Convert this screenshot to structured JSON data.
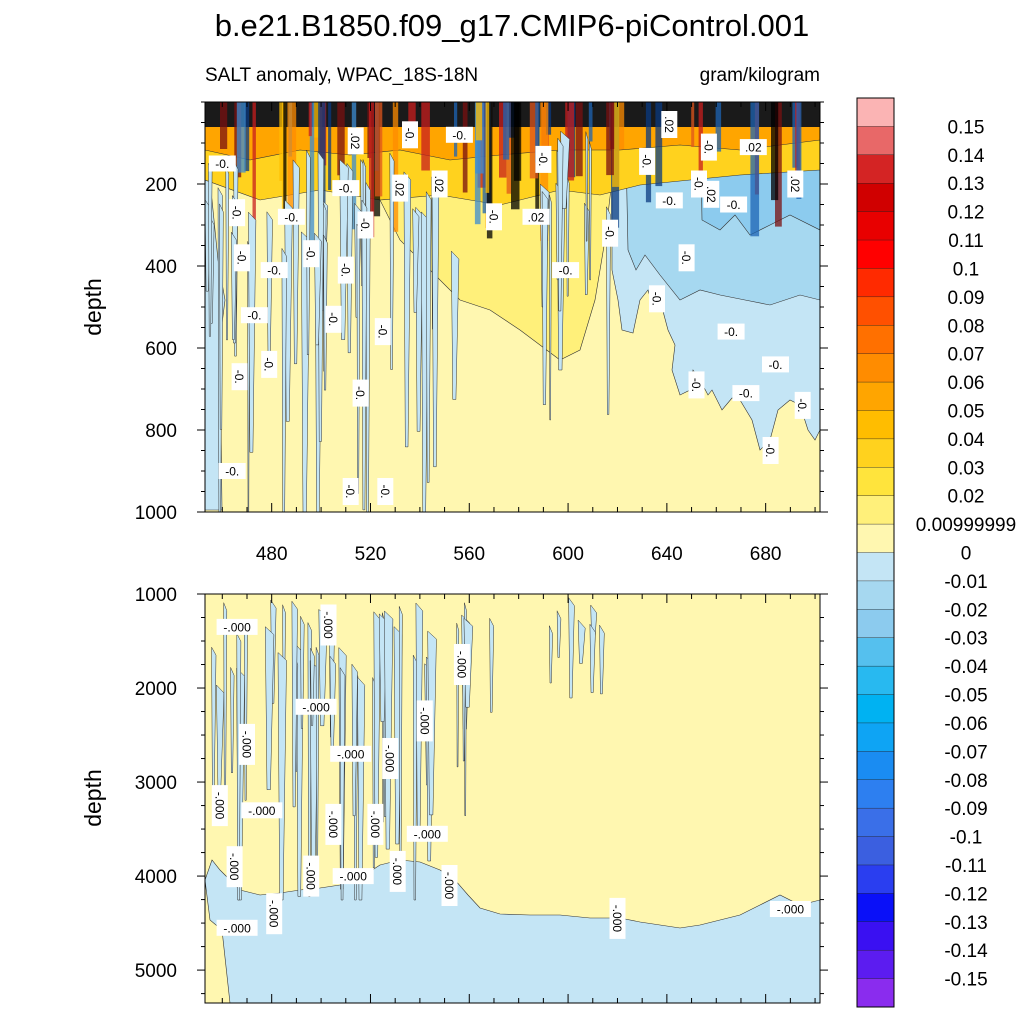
{
  "chart_data": {
    "type": "heatmap",
    "title": "b.e21.B1850.f09_g17.CMIP6-piControl.001",
    "left_subtitle": "SALT anomaly, WPAC_18S-18N",
    "right_subtitle": "gram/kilogram",
    "x_range": [
      453,
      702
    ],
    "x_ticks": [
      "480",
      "520",
      "560",
      "600",
      "640",
      "680"
    ],
    "x_tick_values": [
      480,
      520,
      560,
      600,
      640,
      680
    ],
    "panels": [
      {
        "name": "upper",
        "ylabel": "depth",
        "ylim": [
          0,
          1000
        ],
        "y_ticks": [
          "200",
          "400",
          "600",
          "800",
          "1000"
        ],
        "y_tick_values": [
          200,
          400,
          600,
          800,
          1000
        ],
        "contour_labels": [
          {
            "text": "-0.",
            "x": 460,
            "y": 150
          },
          {
            "text": ".02",
            "x": 514,
            "y": 95
          },
          {
            "text": "-0.",
            "x": 536,
            "y": 80
          },
          {
            "text": "-0.",
            "x": 556,
            "y": 80
          },
          {
            "text": ".02",
            "x": 641,
            "y": 55
          },
          {
            "text": "-0.",
            "x": 657,
            "y": 110
          },
          {
            "text": ".02",
            "x": 675,
            "y": 110
          },
          {
            "text": "-0.",
            "x": 590,
            "y": 140
          },
          {
            "text": "-0.",
            "x": 632,
            "y": 145
          },
          {
            "text": "-0.",
            "x": 510,
            "y": 210
          },
          {
            "text": ".02",
            "x": 532,
            "y": 210
          },
          {
            "text": ".02",
            "x": 548,
            "y": 200
          },
          {
            "text": "-0.",
            "x": 641,
            "y": 240
          },
          {
            "text": "-0.",
            "x": 653,
            "y": 200
          },
          {
            "text": ".02",
            "x": 658,
            "y": 225
          },
          {
            "text": "-0.",
            "x": 667,
            "y": 250
          },
          {
            "text": ".02",
            "x": 692,
            "y": 200
          },
          {
            "text": "-0.",
            "x": 466,
            "y": 270
          },
          {
            "text": "-0.",
            "x": 488,
            "y": 280
          },
          {
            "text": "-0.",
            "x": 518,
            "y": 300
          },
          {
            "text": "-0.",
            "x": 570,
            "y": 280
          },
          {
            "text": ".02",
            "x": 587,
            "y": 280
          },
          {
            "text": "-0.",
            "x": 617,
            "y": 320
          },
          {
            "text": "-0.",
            "x": 468,
            "y": 380
          },
          {
            "text": "-0.",
            "x": 481,
            "y": 410
          },
          {
            "text": "-0.",
            "x": 496,
            "y": 370
          },
          {
            "text": "-0.",
            "x": 510,
            "y": 410
          },
          {
            "text": "-0.",
            "x": 599,
            "y": 410
          },
          {
            "text": "-0.",
            "x": 648,
            "y": 380
          },
          {
            "text": "-0.",
            "x": 636,
            "y": 480
          },
          {
            "text": "-0.",
            "x": 473,
            "y": 520
          },
          {
            "text": "-0.",
            "x": 505,
            "y": 530
          },
          {
            "text": "-0.",
            "x": 525,
            "y": 560
          },
          {
            "text": "-0.",
            "x": 666,
            "y": 560
          },
          {
            "text": "-0.",
            "x": 479,
            "y": 640
          },
          {
            "text": "-0.",
            "x": 467,
            "y": 670
          },
          {
            "text": "-0.",
            "x": 684,
            "y": 640
          },
          {
            "text": "-0.",
            "x": 652,
            "y": 690
          },
          {
            "text": "-0.",
            "x": 516,
            "y": 710
          },
          {
            "text": "-0.",
            "x": 672,
            "y": 710
          },
          {
            "text": "-0.",
            "x": 695,
            "y": 740
          },
          {
            "text": "-0.",
            "x": 682,
            "y": 850
          },
          {
            "text": "-0.",
            "x": 464,
            "y": 900
          },
          {
            "text": "-0.",
            "x": 512,
            "y": 950
          },
          {
            "text": "-0.",
            "x": 526,
            "y": 950
          }
        ]
      },
      {
        "name": "lower",
        "ylabel": "depth",
        "ylim": [
          1000,
          5350
        ],
        "y_ticks": [
          "1000",
          "2000",
          "3000",
          "4000",
          "5000"
        ],
        "y_tick_values": [
          1000,
          2000,
          3000,
          4000,
          5000
        ],
        "contour_labels": [
          {
            "text": "-.000",
            "x": 466,
            "y": 1350
          },
          {
            "text": "-.000",
            "x": 503,
            "y": 1330
          },
          {
            "text": "-.000",
            "x": 557,
            "y": 1750
          },
          {
            "text": "-.000",
            "x": 498,
            "y": 2200
          },
          {
            "text": "-.000",
            "x": 542,
            "y": 2350
          },
          {
            "text": "-.000",
            "x": 470,
            "y": 2600
          },
          {
            "text": "-.000",
            "x": 512,
            "y": 2700
          },
          {
            "text": "-.000",
            "x": 528,
            "y": 2750
          },
          {
            "text": "-.000",
            "x": 459,
            "y": 3250
          },
          {
            "text": "-.000",
            "x": 476,
            "y": 3300
          },
          {
            "text": "-.000",
            "x": 505,
            "y": 3450
          },
          {
            "text": "-.000",
            "x": 522,
            "y": 3450
          },
          {
            "text": "-.000",
            "x": 543,
            "y": 3550
          },
          {
            "text": "-.000",
            "x": 465,
            "y": 3900
          },
          {
            "text": "-.000",
            "x": 496,
            "y": 4000
          },
          {
            "text": "-.000",
            "x": 513,
            "y": 4000
          },
          {
            "text": "-.000",
            "x": 531,
            "y": 3950
          },
          {
            "text": "-.000",
            "x": 552,
            "y": 4100
          },
          {
            "text": "-.000",
            "x": 466,
            "y": 4550
          },
          {
            "text": "-.000",
            "x": 481,
            "y": 4400
          },
          {
            "text": "-.000",
            "x": 620,
            "y": 4450
          },
          {
            "text": "-.000",
            "x": 690,
            "y": 4350
          }
        ]
      }
    ],
    "colorbar": {
      "levels": [
        "0.15",
        "0.14",
        "0.13",
        "0.12",
        "0.11",
        "0.1",
        "0.09",
        "0.08",
        "0.07",
        "0.06",
        "0.05",
        "0.04",
        "0.03",
        "0.02",
        "0.00999999",
        "0",
        "-0.01",
        "-0.02",
        "-0.03",
        "-0.04",
        "-0.05",
        "-0.06",
        "-0.07",
        "-0.08",
        "-0.09",
        "-0.1",
        "-0.11",
        "-0.12",
        "-0.13",
        "-0.14",
        "-0.15"
      ],
      "colors": [
        "#fbb4b4",
        "#e86868",
        "#d42424",
        "#d00000",
        "#e80000",
        "#ff0000",
        "#ff2a00",
        "#ff5000",
        "#ff7000",
        "#ff8c00",
        "#ffa500",
        "#ffbd00",
        "#ffd21e",
        "#ffe43c",
        "#fff07a",
        "#fff7b0",
        "#c4e5f5",
        "#a6d8f0",
        "#8ccbee",
        "#55c0ee",
        "#28b9f0",
        "#00b2f2",
        "#0ea4f4",
        "#1a8cf2",
        "#2d7ff0",
        "#3a6fe8",
        "#3b5fe0",
        "#2a3ef0",
        "#0a10f8",
        "#3a10f2",
        "#5c1cf0",
        "#8a2cee"
      ]
    }
  }
}
